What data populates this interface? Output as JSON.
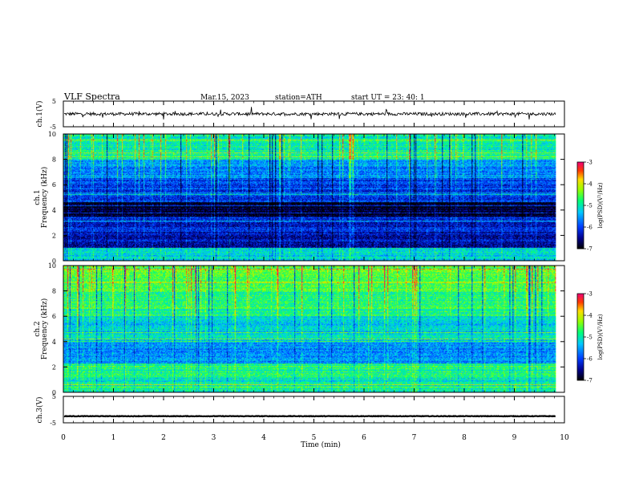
{
  "header": {
    "title": "VLF  Spectra",
    "date": "Mar.15, 2023",
    "station": "station=ATH",
    "start": "start  UT  =   23: 40: 1"
  },
  "chart_data": [
    {
      "type": "line",
      "name_label": "ch.1(V)",
      "ylabel": "ch.1(V)",
      "xlim": [
        0,
        10
      ],
      "ylim": [
        -5,
        5
      ],
      "y_ticks": [
        "5",
        "-5"
      ],
      "approx_center": 0,
      "approx_amplitude": 1,
      "x_end": 9.83
    },
    {
      "type": "heatmap",
      "ylabel_lines": [
        "ch.1",
        "Frequency  (kHz)"
      ],
      "xlim": [
        0,
        10
      ],
      "ylim": [
        0,
        10
      ],
      "y_ticks": [
        "0",
        "2",
        "4",
        "6",
        "8",
        "10"
      ],
      "x_end": 9.83,
      "colorbar": {
        "label": "log(PSD)(V²/Hz)",
        "range": [
          -7,
          -3
        ],
        "ticks": [
          "-3",
          "-4",
          "-5",
          "-6",
          "-7"
        ]
      },
      "dominant_level_by_band_khz": [
        {
          "from": 0,
          "to": 1,
          "level": -5.2
        },
        {
          "from": 1,
          "to": 2.3,
          "level": -6.3
        },
        {
          "from": 2.3,
          "to": 3.5,
          "level": -6.2
        },
        {
          "from": 3.5,
          "to": 4.6,
          "level": -6.9
        },
        {
          "from": 4.6,
          "to": 6.5,
          "level": -6.0
        },
        {
          "from": 6.5,
          "to": 8.0,
          "level": -5.6
        },
        {
          "from": 8.0,
          "to": 10.0,
          "level": -5.0
        }
      ]
    },
    {
      "type": "heatmap",
      "ylabel_lines": [
        "ch.2",
        "Frequency  (kHz)"
      ],
      "xlim": [
        0,
        10
      ],
      "ylim": [
        0,
        10
      ],
      "y_ticks": [
        "0",
        "2",
        "4",
        "6",
        "8",
        "10"
      ],
      "x_end": 9.83,
      "colorbar": {
        "label": "log(PSD)(V²/Hz)",
        "range": [
          -7,
          -3
        ],
        "ticks": [
          "-3",
          "-4",
          "-5",
          "-6",
          "-7"
        ]
      },
      "dominant_level_by_band_khz": [
        {
          "from": 0,
          "to": 1.2,
          "level": -5.0
        },
        {
          "from": 1.2,
          "to": 2.3,
          "level": -4.8
        },
        {
          "from": 2.3,
          "to": 4.0,
          "level": -5.6
        },
        {
          "from": 4.0,
          "to": 6.0,
          "level": -5.2
        },
        {
          "from": 6.0,
          "to": 8.0,
          "level": -4.8
        },
        {
          "from": 8.0,
          "to": 10.0,
          "level": -4.5
        }
      ]
    },
    {
      "type": "line",
      "ylabel": "ch.3(V)",
      "xlim": [
        0,
        10
      ],
      "ylim": [
        -5,
        5
      ],
      "y_ticks": [
        "5",
        "-5"
      ],
      "approx_center": -2.5,
      "approx_amplitude": 0.2,
      "x_end": 9.83
    }
  ],
  "x_axis": {
    "label": "Time  (min)",
    "ticks": [
      "0",
      "1",
      "2",
      "3",
      "4",
      "5",
      "6",
      "7",
      "8",
      "9",
      "10"
    ]
  }
}
